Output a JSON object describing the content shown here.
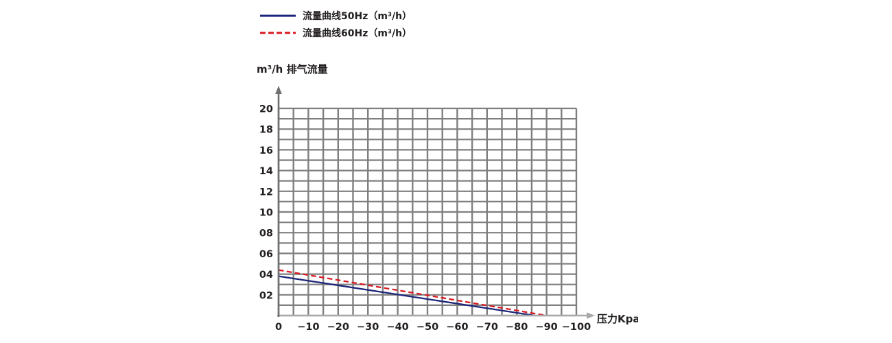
{
  "legend": {
    "items": [
      {
        "label": "流量曲线50Hz（m³/h）",
        "color": "#1c2578",
        "style": "solid"
      },
      {
        "label": "流量曲线60Hz（m³/h）",
        "color": "#d91a22",
        "style": "dashed"
      }
    ]
  },
  "chart_data": {
    "type": "line",
    "title": "m³/h 排气流量",
    "xlabel": "压力Kpa",
    "ylabel": "m³/h 排气流量",
    "xlim": [
      0,
      -100
    ],
    "ylim": [
      0,
      20
    ],
    "x_ticks": [
      "0",
      "−10",
      "−20",
      "−30",
      "−40",
      "−50",
      "−60",
      "−70",
      "−80",
      "−90",
      "−100"
    ],
    "x_tick_values": [
      0,
      -10,
      -20,
      -30,
      -40,
      -50,
      -60,
      -70,
      -80,
      -90,
      -100
    ],
    "y_ticks": [
      "20",
      "18",
      "16",
      "14",
      "12",
      "10",
      "08",
      "06",
      "04",
      "02"
    ],
    "y_tick_values": [
      20,
      18,
      16,
      14,
      12,
      10,
      8,
      6,
      4,
      2
    ],
    "grid": {
      "on": true,
      "x_step": 5,
      "y_step": 1,
      "color": "#7f7f7f"
    },
    "axis_colors": {
      "y_axis": "#6f6f6f",
      "x_axis": "#a9a9a9"
    },
    "legend_position": "top-left",
    "series": [
      {
        "name": "流量曲线50Hz（m³/h）",
        "color": "#1c2578",
        "dash": false,
        "points": [
          [
            0,
            3.8
          ],
          [
            -86,
            0
          ]
        ]
      },
      {
        "name": "流量曲线60Hz（m³/h）",
        "color": "#d91a22",
        "dash": true,
        "points": [
          [
            0,
            4.4
          ],
          [
            -90,
            0
          ]
        ]
      }
    ]
  }
}
